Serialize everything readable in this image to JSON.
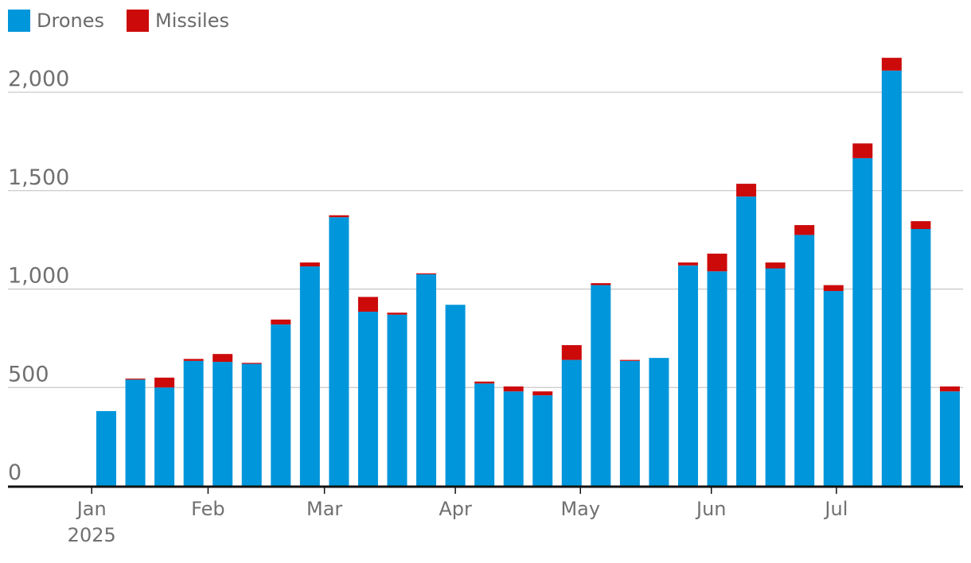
{
  "chart_data": {
    "type": "bar",
    "stacked": true,
    "title": "",
    "xlabel": "",
    "ylabel": "",
    "ylim": [
      0,
      2200
    ],
    "grid": true,
    "legend_position": "top-left",
    "series": [
      {
        "name": "Drones",
        "color": "#0096db",
        "values": [
          380,
          540,
          500,
          635,
          630,
          620,
          820,
          1115,
          1365,
          885,
          870,
          1075,
          920,
          520,
          480,
          460,
          640,
          1020,
          635,
          650,
          1120,
          1090,
          1470,
          1105,
          1275,
          990,
          1665,
          2110,
          1305,
          480
        ]
      },
      {
        "name": "Missiles",
        "color": "#cc0a0a",
        "values": [
          0,
          5,
          50,
          10,
          40,
          5,
          25,
          20,
          10,
          75,
          10,
          5,
          0,
          10,
          25,
          20,
          75,
          10,
          5,
          0,
          15,
          90,
          65,
          30,
          50,
          30,
          75,
          65,
          40,
          25
        ]
      }
    ],
    "y_ticks": [
      "0",
      "500",
      "1,000",
      "1,500",
      "2,000"
    ],
    "y_tick_values": [
      0,
      500,
      1000,
      1500,
      2000
    ],
    "x_ticks": [
      {
        "label": "Jan",
        "sub": "2025",
        "after_bar": -1
      },
      {
        "label": "Feb",
        "sub": "",
        "after_bar": 3
      },
      {
        "label": "Mar",
        "sub": "",
        "after_bar": 7
      },
      {
        "label": "Apr",
        "sub": "",
        "after_bar": 11.5
      },
      {
        "label": "May",
        "sub": "",
        "after_bar": 15.8
      },
      {
        "label": "Jun",
        "sub": "",
        "after_bar": 20.3
      },
      {
        "label": "Jul",
        "sub": "",
        "after_bar": 24.6
      }
    ]
  }
}
